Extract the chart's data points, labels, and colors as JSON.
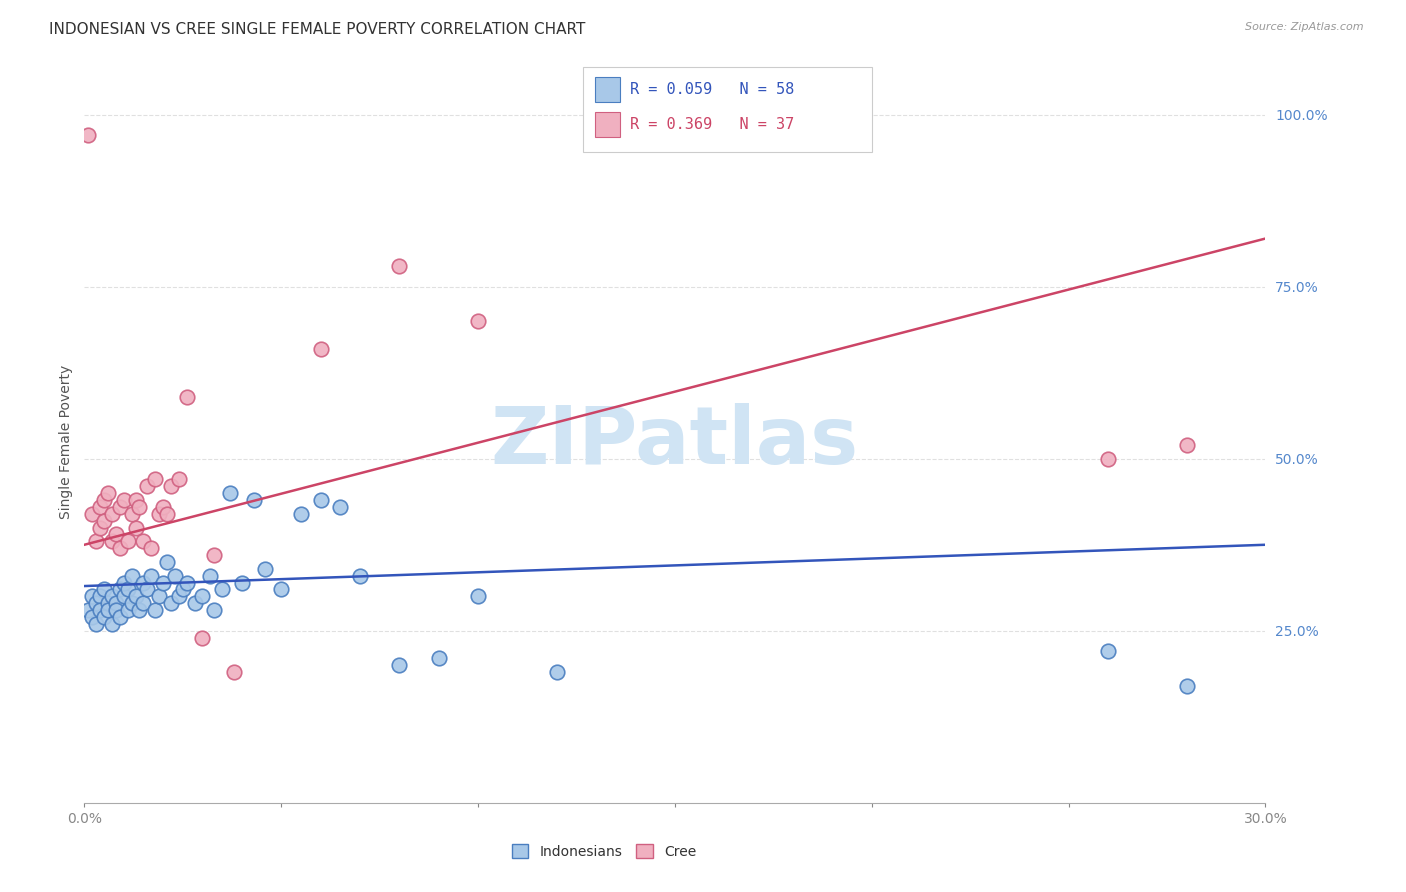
{
  "title": "INDONESIAN VS CREE SINGLE FEMALE POVERTY CORRELATION CHART",
  "source": "Source: ZipAtlas.com",
  "ylabel": "Single Female Poverty",
  "xlim": [
    0.0,
    0.3
  ],
  "ylim": [
    0.0,
    1.05
  ],
  "yticks": [
    0.25,
    0.5,
    0.75,
    1.0
  ],
  "yticklabels": [
    "25.0%",
    "50.0%",
    "75.0%",
    "100.0%"
  ],
  "legend_label1": "Indonesians",
  "legend_label2": "Cree",
  "blue_scatter_face": "#a8c8e8",
  "blue_scatter_edge": "#4a7ec0",
  "pink_scatter_face": "#f0b0c0",
  "pink_scatter_edge": "#d06080",
  "blue_line_color": "#3355bb",
  "pink_line_color": "#cc4466",
  "tick_color": "#5588cc",
  "watermark_color": "#d0e4f4",
  "background_color": "#ffffff",
  "grid_color": "#e0e0e0",
  "title_fontsize": 11,
  "axis_label_fontsize": 10,
  "tick_fontsize": 10,
  "ind_x": [
    0.001,
    0.002,
    0.002,
    0.003,
    0.003,
    0.004,
    0.004,
    0.005,
    0.005,
    0.006,
    0.006,
    0.007,
    0.007,
    0.008,
    0.008,
    0.009,
    0.009,
    0.01,
    0.01,
    0.011,
    0.011,
    0.012,
    0.012,
    0.013,
    0.014,
    0.015,
    0.015,
    0.016,
    0.017,
    0.018,
    0.019,
    0.02,
    0.021,
    0.022,
    0.023,
    0.024,
    0.025,
    0.026,
    0.028,
    0.03,
    0.032,
    0.033,
    0.035,
    0.037,
    0.04,
    0.043,
    0.046,
    0.05,
    0.055,
    0.06,
    0.065,
    0.07,
    0.08,
    0.09,
    0.1,
    0.12,
    0.26,
    0.28
  ],
  "ind_y": [
    0.28,
    0.27,
    0.3,
    0.29,
    0.26,
    0.3,
    0.28,
    0.27,
    0.31,
    0.29,
    0.28,
    0.3,
    0.26,
    0.29,
    0.28,
    0.31,
    0.27,
    0.3,
    0.32,
    0.28,
    0.31,
    0.29,
    0.33,
    0.3,
    0.28,
    0.32,
    0.29,
    0.31,
    0.33,
    0.28,
    0.3,
    0.32,
    0.35,
    0.29,
    0.33,
    0.3,
    0.31,
    0.32,
    0.29,
    0.3,
    0.33,
    0.28,
    0.31,
    0.45,
    0.32,
    0.44,
    0.34,
    0.31,
    0.42,
    0.44,
    0.43,
    0.33,
    0.2,
    0.21,
    0.3,
    0.19,
    0.22,
    0.17
  ],
  "cree_x": [
    0.001,
    0.002,
    0.003,
    0.004,
    0.004,
    0.005,
    0.005,
    0.006,
    0.007,
    0.007,
    0.008,
    0.009,
    0.009,
    0.01,
    0.011,
    0.012,
    0.013,
    0.013,
    0.014,
    0.015,
    0.016,
    0.017,
    0.018,
    0.019,
    0.02,
    0.021,
    0.022,
    0.024,
    0.026,
    0.03,
    0.033,
    0.038,
    0.06,
    0.08,
    0.1,
    0.26,
    0.28
  ],
  "cree_y": [
    0.97,
    0.42,
    0.38,
    0.43,
    0.4,
    0.41,
    0.44,
    0.45,
    0.38,
    0.42,
    0.39,
    0.43,
    0.37,
    0.44,
    0.38,
    0.42,
    0.44,
    0.4,
    0.43,
    0.38,
    0.46,
    0.37,
    0.47,
    0.42,
    0.43,
    0.42,
    0.46,
    0.47,
    0.59,
    0.24,
    0.36,
    0.19,
    0.66,
    0.78,
    0.7,
    0.5,
    0.52
  ],
  "blue_trend_x": [
    0.0,
    0.3
  ],
  "blue_trend_y": [
    0.315,
    0.375
  ],
  "pink_trend_x": [
    0.0,
    0.3
  ],
  "pink_trend_y": [
    0.375,
    0.82
  ]
}
